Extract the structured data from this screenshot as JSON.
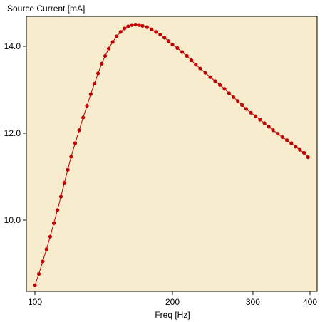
{
  "chart_data": {
    "type": "line",
    "title": "",
    "xlabel": "Freq [Hz]",
    "ylabel": "Source Current [mA]",
    "xscale": "log",
    "xlim": [
      95,
      410
    ],
    "ylim": [
      8.35,
      14.7
    ],
    "x_ticks": [
      100,
      200,
      300,
      400
    ],
    "y_ticks": [
      10.0,
      12.0,
      14.0
    ],
    "x_tick_labels": [
      "100",
      "200",
      "300",
      "400"
    ],
    "y_tick_labels": [
      "10.0",
      "12.0",
      "14.0"
    ],
    "grid": false,
    "legend": "none",
    "colors": {
      "plot_background": "#f7ecce",
      "line": "#c00000",
      "marker": "#c00000",
      "axis": "#000000"
    },
    "series": [
      {
        "x": [
          100,
          102,
          104,
          106,
          108,
          110,
          112,
          114,
          116,
          118,
          120,
          122.5,
          125,
          127.5,
          130,
          132.5,
          135,
          137.5,
          140,
          142.5,
          145,
          148,
          151,
          154,
          157,
          160,
          163,
          166,
          169,
          172,
          176,
          180,
          184,
          188,
          192,
          196,
          200,
          205,
          210,
          215,
          220,
          225,
          230,
          236,
          242,
          248,
          254,
          260,
          266,
          272,
          278,
          284,
          290,
          297,
          304,
          311,
          318,
          325,
          332,
          340,
          348,
          356,
          364,
          372,
          380,
          388,
          396
        ],
        "y": [
          8.5,
          8.76,
          9.05,
          9.33,
          9.62,
          9.93,
          10.23,
          10.54,
          10.86,
          11.16,
          11.46,
          11.77,
          12.07,
          12.36,
          12.63,
          12.9,
          13.14,
          13.38,
          13.6,
          13.78,
          13.95,
          14.1,
          14.23,
          14.33,
          14.41,
          14.46,
          14.49,
          14.5,
          14.49,
          14.47,
          14.44,
          14.39,
          14.33,
          14.27,
          14.2,
          14.12,
          14.04,
          13.96,
          13.87,
          13.78,
          13.68,
          13.58,
          13.49,
          13.39,
          13.29,
          13.2,
          13.11,
          13.02,
          12.92,
          12.83,
          12.74,
          12.65,
          12.56,
          12.47,
          12.39,
          12.31,
          12.23,
          12.15,
          12.07,
          11.99,
          11.91,
          11.84,
          11.77,
          11.69,
          11.62,
          11.55,
          11.45
        ]
      }
    ]
  }
}
